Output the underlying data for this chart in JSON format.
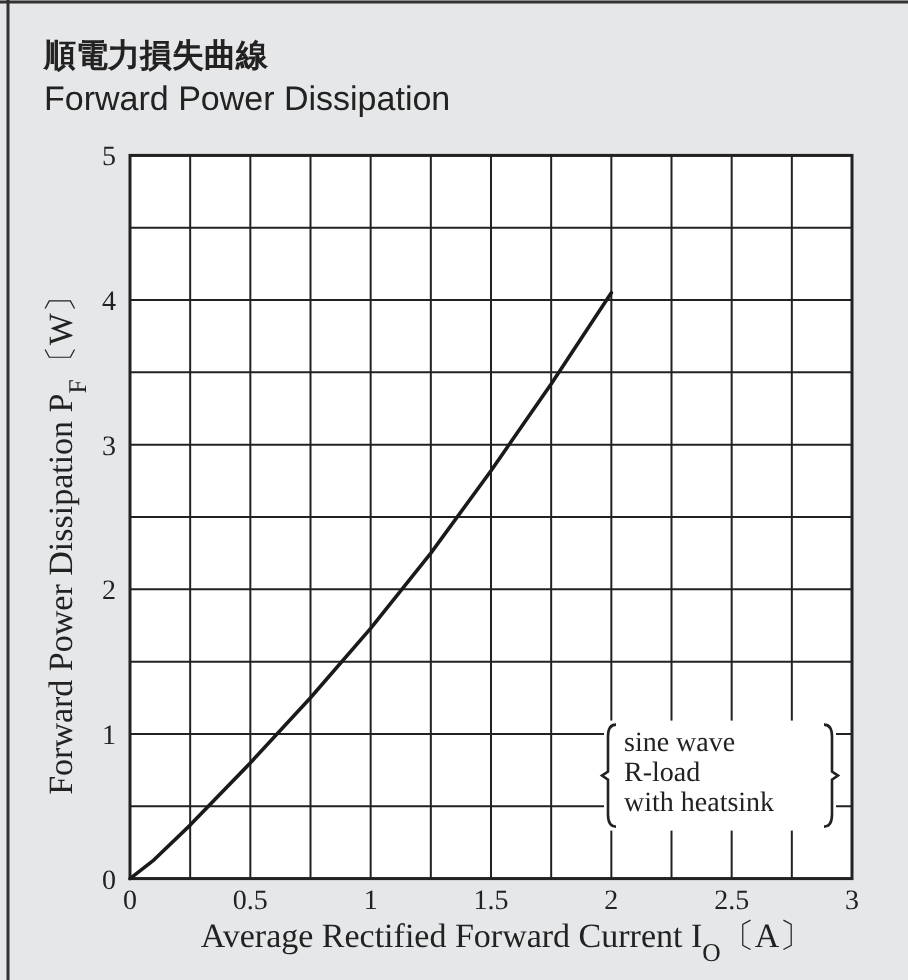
{
  "chart_data": {
    "type": "line",
    "title": "順電力損失曲線",
    "subtitle": "Forward Power Dissipation",
    "xlabel": "Average Rectified Forward Current I$_{O}$〔A〕",
    "ylabel": "Forward Power Dissipation P$_{F}$〔W〕",
    "x": [
      0,
      0.1,
      0.25,
      0.5,
      0.75,
      1,
      1.25,
      1.5,
      1.75,
      2
    ],
    "series": [
      {
        "color": "#1a1a1a",
        "values": [
          0,
          0.13,
          0.37,
          0.8,
          1.25,
          1.73,
          2.25,
          2.82,
          3.42,
          4.05
        ]
      }
    ],
    "xlim": [
      0,
      3
    ],
    "ylim": [
      0,
      5
    ],
    "xticks": [
      0,
      {
        "value": 0.25,
        "label": null
      },
      0.5,
      {
        "value": 0.75,
        "label": null
      },
      1,
      {
        "value": 1.25,
        "label": null
      },
      1.5,
      {
        "value": 1.75,
        "label": null
      },
      2,
      {
        "value": 2.25,
        "label": null
      },
      2.5,
      {
        "value": 2.75,
        "label": null
      },
      3
    ],
    "yticks": [
      0,
      {
        "value": 0.5,
        "label": null
      },
      1,
      {
        "value": 1.5,
        "label": null
      },
      2,
      {
        "value": 2.5,
        "label": null
      },
      3,
      {
        "value": 3.5,
        "label": null
      },
      4,
      {
        "value": 4.5,
        "label": null
      },
      5
    ],
    "grid": true,
    "marker": "none",
    "line_style": "solid",
    "annotations": [
      "sine wave\nR-load\nwith heatsink"
    ]
  }
}
